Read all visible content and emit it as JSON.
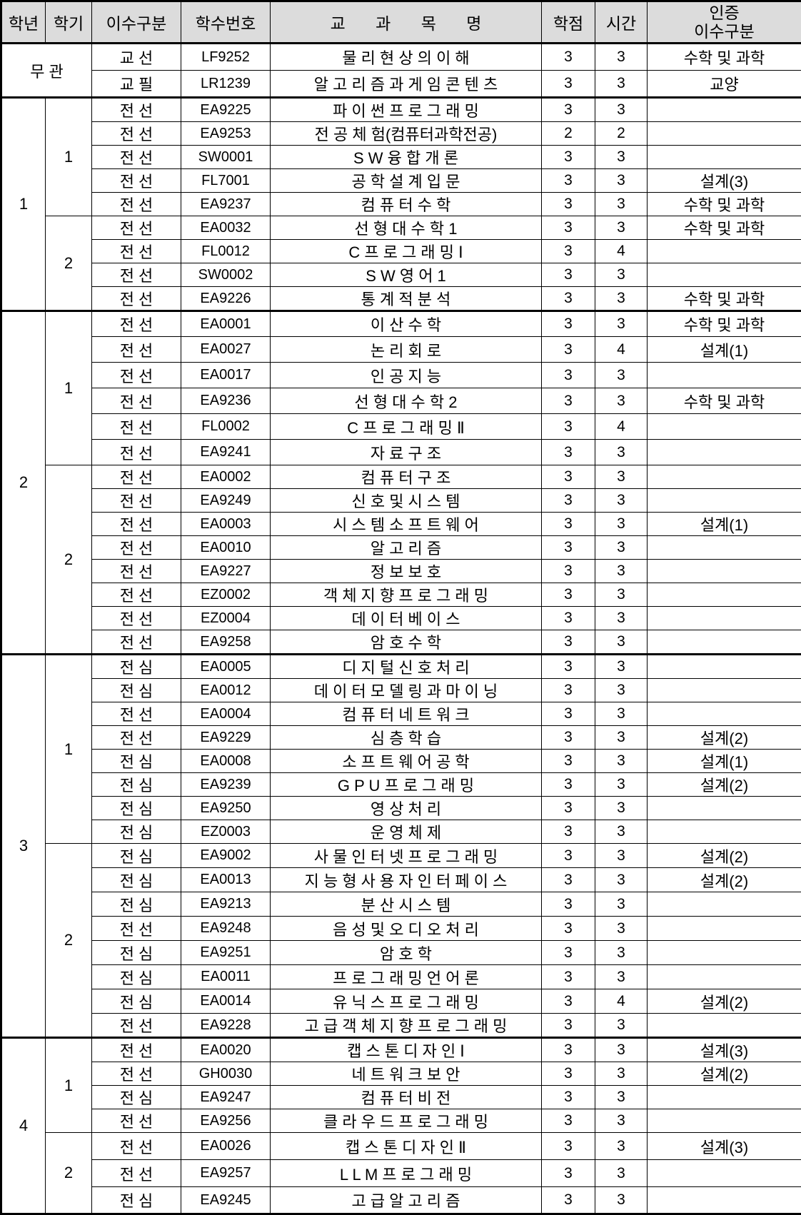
{
  "header": {
    "year": "학년",
    "semester": "학기",
    "category": "이수구분",
    "course_no": "학수번호",
    "course_name": "교 과 목 명",
    "credits": "학점",
    "hours": "시간",
    "cert_line1": "인증",
    "cert_line2": "이수구분"
  },
  "colors": {
    "header_bg": "#dcdcdc",
    "border": "#000000"
  },
  "groups": [
    {
      "year": "무 관",
      "merged_semester": true,
      "semesters": [
        {
          "label": "",
          "rows": [
            {
              "category": "교 선",
              "no": "LF9252",
              "name": "물 리 현 상 의 이 해",
              "credits": "3",
              "hours": "3",
              "cert": "수학 및 과학"
            },
            {
              "category": "교 필",
              "no": "LR1239",
              "name": "알 고 리 즘 과 게 임 콘 텐 츠",
              "credits": "3",
              "hours": "3",
              "cert": "교양"
            }
          ]
        }
      ]
    },
    {
      "year": "1",
      "merged_semester": false,
      "semesters": [
        {
          "label": "1",
          "rows": [
            {
              "category": "전 선",
              "no": "EA9225",
              "name": "파 이 썬 프 로 그 래 밍",
              "credits": "3",
              "hours": "3",
              "cert": ""
            },
            {
              "category": "전 선",
              "no": "EA9253",
              "name": "전 공 체 험(컴퓨터과학전공)",
              "credits": "2",
              "hours": "2",
              "cert": ""
            },
            {
              "category": "전 선",
              "no": "SW0001",
              "name": "S W 융 합 개 론",
              "credits": "3",
              "hours": "3",
              "cert": ""
            },
            {
              "category": "전 선",
              "no": "FL7001",
              "name": "공 학 설 계 입 문",
              "credits": "3",
              "hours": "3",
              "cert": "설계(3)"
            },
            {
              "category": "전 선",
              "no": "EA9237",
              "name": "컴 퓨 터 수 학",
              "credits": "3",
              "hours": "3",
              "cert": "수학 및 과학"
            }
          ]
        },
        {
          "label": "2",
          "rows": [
            {
              "category": "전 선",
              "no": "EA0032",
              "name": "선 형 대 수 학 1",
              "credits": "3",
              "hours": "3",
              "cert": "수학 및 과학"
            },
            {
              "category": "전 선",
              "no": "FL0012",
              "name": "C 프 로 그 래 밍 Ⅰ",
              "credits": "3",
              "hours": "4",
              "cert": ""
            },
            {
              "category": "전 선",
              "no": "SW0002",
              "name": "S W 영 어 1",
              "credits": "3",
              "hours": "3",
              "cert": ""
            },
            {
              "category": "전 선",
              "no": "EA9226",
              "name": "통 계 적 분 석",
              "credits": "3",
              "hours": "3",
              "cert": "수학 및 과학"
            }
          ]
        }
      ]
    },
    {
      "year": "2",
      "merged_semester": false,
      "semesters": [
        {
          "label": "1",
          "rows": [
            {
              "category": "전 선",
              "no": "EA0001",
              "name": "이 산 수 학",
              "credits": "3",
              "hours": "3",
              "cert": "수학 및 과학"
            },
            {
              "category": "전 선",
              "no": "EA0027",
              "name": "논 리 회 로",
              "credits": "3",
              "hours": "4",
              "cert": "설계(1)"
            },
            {
              "category": "전 선",
              "no": "EA0017",
              "name": "인 공 지 능",
              "credits": "3",
              "hours": "3",
              "cert": ""
            },
            {
              "category": "전 선",
              "no": "EA9236",
              "name": "선 형 대 수 학 2",
              "credits": "3",
              "hours": "3",
              "cert": "수학 및 과학"
            },
            {
              "category": "전 선",
              "no": "FL0002",
              "name": "C 프 로 그 래 밍 Ⅱ",
              "credits": "3",
              "hours": "4",
              "cert": ""
            },
            {
              "category": "전 선",
              "no": "EA9241",
              "name": "자 료 구 조",
              "credits": "3",
              "hours": "3",
              "cert": ""
            }
          ]
        },
        {
          "label": "2",
          "rows": [
            {
              "category": "전 선",
              "no": "EA0002",
              "name": "컴 퓨 터 구 조",
              "credits": "3",
              "hours": "3",
              "cert": ""
            },
            {
              "category": "전 선",
              "no": "EA9249",
              "name": "신 호 및 시 스 템",
              "credits": "3",
              "hours": "3",
              "cert": ""
            },
            {
              "category": "전 선",
              "no": "EA0003",
              "name": "시 스 템 소 프 트 웨 어",
              "credits": "3",
              "hours": "3",
              "cert": "설계(1)"
            },
            {
              "category": "전 선",
              "no": "EA0010",
              "name": "알 고 리 즘",
              "credits": "3",
              "hours": "3",
              "cert": ""
            },
            {
              "category": "전 선",
              "no": "EA9227",
              "name": "정 보 보 호",
              "credits": "3",
              "hours": "3",
              "cert": ""
            },
            {
              "category": "전 선",
              "no": "EZ0002",
              "name": "객 체 지 향 프 로 그 래 밍",
              "credits": "3",
              "hours": "3",
              "cert": ""
            },
            {
              "category": "전 선",
              "no": "EZ0004",
              "name": "데 이 터 베 이 스",
              "credits": "3",
              "hours": "3",
              "cert": ""
            },
            {
              "category": "전 선",
              "no": "EA9258",
              "name": "암 호 수 학",
              "credits": "3",
              "hours": "3",
              "cert": ""
            }
          ]
        }
      ]
    },
    {
      "year": "3",
      "merged_semester": false,
      "semesters": [
        {
          "label": "1",
          "rows": [
            {
              "category": "전 심",
              "no": "EA0005",
              "name": "디 지 털 신 호 처 리",
              "credits": "3",
              "hours": "3",
              "cert": ""
            },
            {
              "category": "전 심",
              "no": "EA0012",
              "name": "데 이 터 모 델 링 과 마 이 닝",
              "credits": "3",
              "hours": "3",
              "cert": ""
            },
            {
              "category": "전 선",
              "no": "EA0004",
              "name": "컴 퓨 터 네 트 워 크",
              "credits": "3",
              "hours": "3",
              "cert": ""
            },
            {
              "category": "전 선",
              "no": "EA9229",
              "name": "심 층 학 습",
              "credits": "3",
              "hours": "3",
              "cert": "설계(2)"
            },
            {
              "category": "전 심",
              "no": "EA0008",
              "name": "소 프 트 웨 어 공 학",
              "credits": "3",
              "hours": "3",
              "cert": "설계(1)"
            },
            {
              "category": "전 심",
              "no": "EA9239",
              "name": "G P U 프 로 그 래 밍",
              "credits": "3",
              "hours": "3",
              "cert": "설계(2)"
            },
            {
              "category": "전 심",
              "no": "EA9250",
              "name": "영 상 처 리",
              "credits": "3",
              "hours": "3",
              "cert": ""
            },
            {
              "category": "전 심",
              "no": "EZ0003",
              "name": "운 영 체 제",
              "credits": "3",
              "hours": "3",
              "cert": ""
            }
          ]
        },
        {
          "label": "2",
          "rows": [
            {
              "category": "전 심",
              "no": "EA9002",
              "name": "사 물 인 터 넷 프 로 그 래 밍",
              "credits": "3",
              "hours": "3",
              "cert": "설계(2)"
            },
            {
              "category": "전 심",
              "no": "EA0013",
              "name": "지 능 형 사 용 자 인 터 페 이 스",
              "credits": "3",
              "hours": "3",
              "cert": "설계(2)"
            },
            {
              "category": "전 심",
              "no": "EA9213",
              "name": "분 산 시 스 템",
              "credits": "3",
              "hours": "3",
              "cert": ""
            },
            {
              "category": "전 선",
              "no": "EA9248",
              "name": "음 성 및 오 디 오 처 리",
              "credits": "3",
              "hours": "3",
              "cert": ""
            },
            {
              "category": "전 심",
              "no": "EA9251",
              "name": "암 호 학",
              "credits": "3",
              "hours": "3",
              "cert": ""
            },
            {
              "category": "전 심",
              "no": "EA0011",
              "name": "프 로 그 래 밍 언 어 론",
              "credits": "3",
              "hours": "3",
              "cert": ""
            },
            {
              "category": "전 심",
              "no": "EA0014",
              "name": "유 닉 스 프 로 그 래 밍",
              "credits": "3",
              "hours": "4",
              "cert": "설계(2)"
            },
            {
              "category": "전 선",
              "no": "EA9228",
              "name": "고 급 객 체 지 향 프 로 그 래 밍",
              "credits": "3",
              "hours": "3",
              "cert": ""
            }
          ]
        }
      ]
    },
    {
      "year": "4",
      "merged_semester": false,
      "semesters": [
        {
          "label": "1",
          "rows": [
            {
              "category": "전 선",
              "no": "EA0020",
              "name": "캡 스 톤 디 자 인 Ⅰ",
              "credits": "3",
              "hours": "3",
              "cert": "설계(3)"
            },
            {
              "category": "전 선",
              "no": "GH0030",
              "name": "네 트 워 크 보 안",
              "credits": "3",
              "hours": "3",
              "cert": "설계(2)"
            },
            {
              "category": "전 심",
              "no": "EA9247",
              "name": "컴 퓨 터 비 전",
              "credits": "3",
              "hours": "3",
              "cert": ""
            },
            {
              "category": "전 선",
              "no": "EA9256",
              "name": "클 라 우 드 프 로 그 래 밍",
              "credits": "3",
              "hours": "3",
              "cert": ""
            }
          ]
        },
        {
          "label": "2",
          "rows": [
            {
              "category": "전 선",
              "no": "EA0026",
              "name": "캡 스 톤 디 자 인 Ⅱ",
              "credits": "3",
              "hours": "3",
              "cert": "설계(3)"
            },
            {
              "category": "전 선",
              "no": "EA9257",
              "name": "L L M 프 로 그 래 밍",
              "credits": "3",
              "hours": "3",
              "cert": ""
            },
            {
              "category": "전 심",
              "no": "EA9245",
              "name": "고 급 알 고 리 즘",
              "credits": "3",
              "hours": "3",
              "cert": ""
            }
          ]
        }
      ]
    }
  ]
}
